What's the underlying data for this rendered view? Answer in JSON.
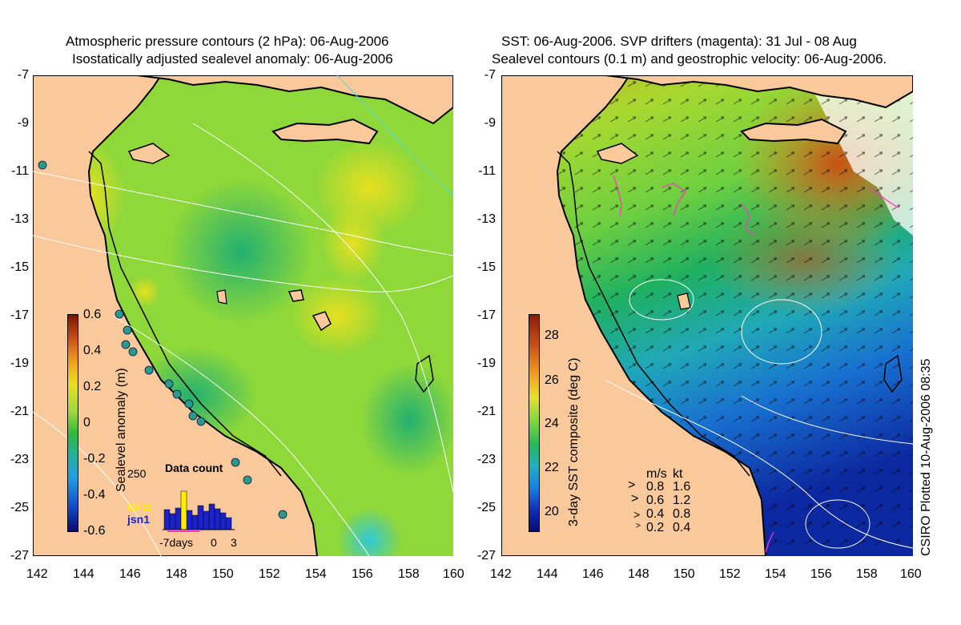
{
  "left_panel": {
    "title_line1": "Atmospheric pressure contours (2 hPa): 06-Aug-2006",
    "title_line2": "Isostatically adjusted sealevel anomaly: 06-Aug-2006",
    "colorbar_label": "Sealevel anomaly (m)",
    "colorbar_ticks": [
      "0.6",
      "0.4",
      "0.2",
      "0",
      "-0.2",
      "-0.4",
      "-0.6"
    ],
    "inset": {
      "title": "Data count",
      "ymax_label": "250",
      "legend": [
        {
          "label": "GFO",
          "color": "#ffee00"
        },
        {
          "label": "jsn1",
          "color": "#1a22cc"
        }
      ],
      "x_ticks": [
        "-7days",
        "0",
        "3"
      ]
    }
  },
  "right_panel": {
    "title_line1": "SST: 06-Aug-2006. SVP drifters (magenta): 31 Jul - 08 Aug",
    "title_line2": "Sealevel contours (0.1 m) and geostrophic velocity: 06-Aug-2006.",
    "colorbar_label": "3-day SST composite (deg C)",
    "colorbar_ticks": [
      "28",
      "26",
      "24",
      "22",
      "20"
    ],
    "velocity_legend": {
      "header_ms": "m/s",
      "header_kt": "kt",
      "rows": [
        {
          "ms": "0.8",
          "kt": "1.6"
        },
        {
          "ms": "0.6",
          "kt": "1.2"
        },
        {
          "ms": "0.4",
          "kt": "0.8"
        },
        {
          "ms": "0.2",
          "kt": "0.4"
        }
      ]
    },
    "credit": "CSIRO Plotted 10-Aug-2006 08:35"
  },
  "axes": {
    "lat_ticks": [
      "-7",
      "-9",
      "-11",
      "-13",
      "-15",
      "-17",
      "-19",
      "-21",
      "-23",
      "-25",
      "-27"
    ],
    "lon_ticks": [
      "142",
      "144",
      "146",
      "148",
      "150",
      "152",
      "154",
      "156",
      "158",
      "160"
    ]
  },
  "colors": {
    "land": "#f9c99b",
    "coast": "#000000",
    "drifter": "#ff33cc",
    "contour": "#ffffff"
  },
  "icons": [
    "velocity-arrow-icon"
  ]
}
